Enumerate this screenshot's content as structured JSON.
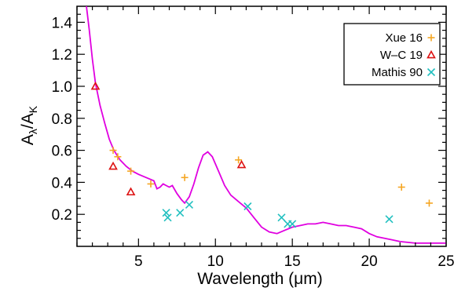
{
  "chart_data": {
    "type": "scatter",
    "xlabel": "Wavelength (μm)",
    "ylabel_main": "A",
    "ylabel_sub1": "λ",
    "ylabel_mid": "/A",
    "ylabel_sub2": "K",
    "xlim": [
      1,
      25
    ],
    "ylim": [
      0,
      1.5
    ],
    "x_ticks": [
      5,
      10,
      15,
      20,
      25
    ],
    "y_ticks": [
      0.2,
      0.4,
      0.6,
      0.8,
      1.0,
      1.2,
      1.4
    ],
    "x_tick_labels": [
      "5",
      "10",
      "15",
      "20",
      "25"
    ],
    "y_tick_labels": [
      "0.2",
      "0.4",
      "0.6",
      "0.8",
      "1.0",
      "1.2",
      "1.4"
    ],
    "legend_position": "top-right",
    "curve": {
      "color": "#e000e0",
      "points": [
        [
          1.6,
          1.51
        ],
        [
          1.8,
          1.35
        ],
        [
          2.0,
          1.17
        ],
        [
          2.2,
          1.02
        ],
        [
          2.5,
          0.88
        ],
        [
          2.8,
          0.77
        ],
        [
          3.1,
          0.67
        ],
        [
          3.4,
          0.6
        ],
        [
          3.8,
          0.54
        ],
        [
          4.2,
          0.5
        ],
        [
          4.6,
          0.47
        ],
        [
          5.0,
          0.45
        ],
        [
          5.5,
          0.43
        ],
        [
          6.0,
          0.41
        ],
        [
          6.2,
          0.36
        ],
        [
          6.4,
          0.37
        ],
        [
          6.6,
          0.39
        ],
        [
          6.8,
          0.38
        ],
        [
          7.0,
          0.37
        ],
        [
          7.2,
          0.38
        ],
        [
          7.5,
          0.33
        ],
        [
          7.8,
          0.29
        ],
        [
          8.0,
          0.27
        ],
        [
          8.3,
          0.31
        ],
        [
          8.6,
          0.39
        ],
        [
          8.9,
          0.49
        ],
        [
          9.2,
          0.57
        ],
        [
          9.5,
          0.59
        ],
        [
          9.8,
          0.56
        ],
        [
          10.2,
          0.47
        ],
        [
          10.6,
          0.38
        ],
        [
          11.0,
          0.32
        ],
        [
          11.5,
          0.28
        ],
        [
          12.0,
          0.24
        ],
        [
          12.5,
          0.18
        ],
        [
          13.0,
          0.12
        ],
        [
          13.5,
          0.09
        ],
        [
          14.0,
          0.08
        ],
        [
          14.5,
          0.1
        ],
        [
          15.0,
          0.12
        ],
        [
          15.5,
          0.13
        ],
        [
          16.0,
          0.14
        ],
        [
          16.5,
          0.14
        ],
        [
          17.0,
          0.15
        ],
        [
          17.5,
          0.14
        ],
        [
          18.0,
          0.13
        ],
        [
          18.5,
          0.13
        ],
        [
          19.0,
          0.12
        ],
        [
          19.5,
          0.11
        ],
        [
          20.0,
          0.08
        ],
        [
          20.5,
          0.06
        ],
        [
          21.0,
          0.05
        ],
        [
          21.5,
          0.04
        ],
        [
          22.0,
          0.03
        ],
        [
          23.0,
          0.02
        ],
        [
          24.0,
          0.02
        ],
        [
          25.0,
          0.02
        ]
      ]
    },
    "series": [
      {
        "name": "Xue 16",
        "marker": "plus",
        "color": "#f5a623",
        "points": [
          [
            3.35,
            0.6
          ],
          [
            3.65,
            0.56
          ],
          [
            4.5,
            0.47
          ],
          [
            5.8,
            0.39
          ],
          [
            8.0,
            0.43
          ],
          [
            11.5,
            0.54
          ],
          [
            22.1,
            0.37
          ],
          [
            23.9,
            0.27
          ]
        ]
      },
      {
        "name": "W–C 19",
        "marker": "triangle",
        "color": "#dd1111",
        "points": [
          [
            2.2,
            1.0
          ],
          [
            3.35,
            0.5
          ],
          [
            4.5,
            0.34
          ],
          [
            11.7,
            0.51
          ]
        ]
      },
      {
        "name": "Mathis 90",
        "marker": "x",
        "color": "#22c0c0",
        "points": [
          [
            6.8,
            0.21
          ],
          [
            6.9,
            0.18
          ],
          [
            7.7,
            0.21
          ],
          [
            8.3,
            0.26
          ],
          [
            12.1,
            0.25
          ],
          [
            14.3,
            0.18
          ],
          [
            14.7,
            0.14
          ],
          [
            15.0,
            0.14
          ],
          [
            21.3,
            0.17
          ]
        ]
      }
    ]
  }
}
